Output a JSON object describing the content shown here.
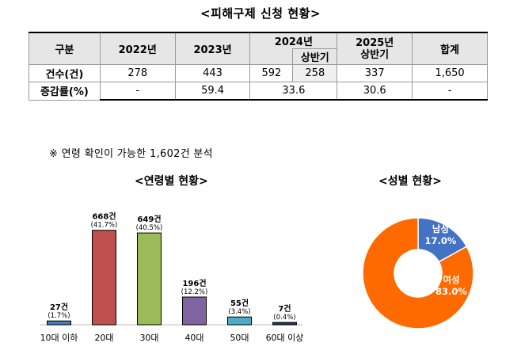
{
  "title": "<피해구제 신청 현황>",
  "table": {
    "header": {
      "col0": "구분",
      "col1": "2022년",
      "col2": "2023년",
      "col3": "2024년",
      "col3_sub": "상반기",
      "col4": "2025년\n상반기",
      "col5": "합계"
    },
    "row_count": {
      "label": "건수(건)",
      "v2022": "278",
      "v2023": "443",
      "v2024": "592",
      "v2024h1": "258",
      "v2025h1": "337",
      "total": "1,650"
    },
    "row_rate": {
      "label": "증감률(%)",
      "v2022": "-",
      "v2023": "59.4",
      "v2024": "33.6",
      "v2025h1": "30.6",
      "total": "-"
    }
  },
  "note": "※ 연령 확인이 가능한 1,602건 분석",
  "age_title": "<연령별 현황>",
  "gender_title": "<성별 현황>",
  "chart_data": [
    {
      "type": "bar",
      "title": "<연령별 현황>",
      "categories": [
        "10대 이하",
        "20대",
        "30대",
        "40대",
        "50대",
        "60대 이상"
      ],
      "values": [
        27,
        668,
        649,
        196,
        55,
        7
      ],
      "count_labels": [
        "27건",
        "668건",
        "649건",
        "196건",
        "55건",
        "7건"
      ],
      "percent_labels": [
        "(1.7%)",
        "(41.7%)",
        "(40.5%)",
        "(12.2%)",
        "(3.4%)",
        "(0.4%)"
      ],
      "colors": [
        "#4a7ebb",
        "#c0504d",
        "#9bbb59",
        "#8064a2",
        "#4bacc6",
        "#1f3864"
      ],
      "ylim": [
        0,
        700
      ],
      "grid": false
    },
    {
      "type": "pie",
      "title": "<성별 현황>",
      "labels": [
        "남성",
        "여성"
      ],
      "values": [
        17.0,
        83.0
      ],
      "percent_labels": [
        "17.0%",
        "83.0%"
      ],
      "colors": [
        "#4472c4",
        "#ff6a00"
      ]
    }
  ]
}
